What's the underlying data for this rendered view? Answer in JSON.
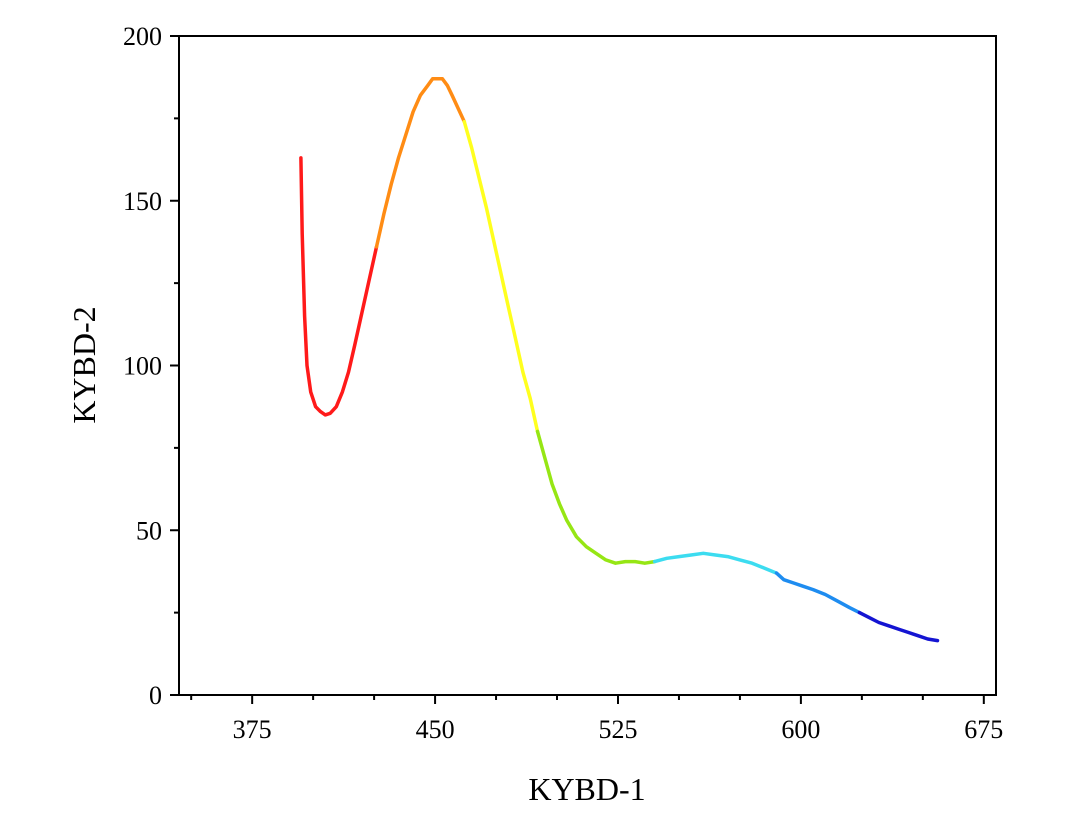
{
  "chart_data": {
    "type": "line",
    "xlabel": "KYBD-1",
    "ylabel": "KYBD-2",
    "xlim": [
      345,
      680
    ],
    "ylim": [
      0,
      200
    ],
    "x_ticks": [
      375,
      450,
      525,
      600,
      675
    ],
    "y_ticks": [
      0,
      50,
      100,
      150,
      200
    ],
    "x_minor_step": 25,
    "y_minor_step": 25,
    "grid": false,
    "legend": "none",
    "series": [
      {
        "color": "#ff1a1a",
        "points": [
          [
            395,
            163
          ],
          [
            395.5,
            140
          ],
          [
            396.5,
            115
          ],
          [
            397.5,
            100
          ],
          [
            399,
            92
          ],
          [
            401,
            87.5
          ],
          [
            403,
            86
          ],
          [
            405,
            85
          ],
          [
            407,
            85.5
          ],
          [
            409.5,
            87.5
          ],
          [
            412,
            92
          ],
          [
            414.5,
            98
          ],
          [
            417,
            106
          ],
          [
            420,
            116
          ],
          [
            423,
            126
          ],
          [
            426,
            136
          ]
        ]
      },
      {
        "color": "#ff8c14",
        "points": [
          [
            426,
            136
          ],
          [
            429,
            146
          ],
          [
            432,
            155
          ],
          [
            435,
            163
          ],
          [
            438,
            170
          ],
          [
            441,
            177
          ],
          [
            444,
            182
          ],
          [
            447,
            185
          ],
          [
            449,
            187
          ],
          [
            451,
            187
          ],
          [
            453,
            187
          ],
          [
            455,
            185
          ],
          [
            457,
            182
          ],
          [
            459.5,
            178
          ],
          [
            462,
            174
          ]
        ]
      },
      {
        "color": "#ffff1e",
        "points": [
          [
            462,
            174
          ],
          [
            465,
            166
          ],
          [
            468,
            157
          ],
          [
            471,
            148
          ],
          [
            474,
            138
          ],
          [
            477,
            128
          ],
          [
            480,
            118
          ],
          [
            483,
            108
          ],
          [
            486,
            98
          ],
          [
            489,
            90
          ],
          [
            492,
            80
          ]
        ]
      },
      {
        "color": "#96e614",
        "points": [
          [
            492,
            80
          ],
          [
            495,
            72
          ],
          [
            498,
            64
          ],
          [
            501,
            58
          ],
          [
            504,
            53
          ],
          [
            508,
            48
          ],
          [
            512,
            45
          ],
          [
            516,
            43
          ],
          [
            520,
            41
          ],
          [
            524,
            40
          ],
          [
            528,
            40.5
          ],
          [
            532,
            40.5
          ],
          [
            536,
            40
          ],
          [
            540,
            40.5
          ]
        ]
      },
      {
        "color": "#3cdcf0",
        "points": [
          [
            540,
            40.5
          ],
          [
            545,
            41.5
          ],
          [
            550,
            42
          ],
          [
            555,
            42.5
          ],
          [
            560,
            43
          ],
          [
            565,
            42.5
          ],
          [
            570,
            42
          ],
          [
            575,
            41
          ],
          [
            580,
            40
          ],
          [
            585,
            38.5
          ],
          [
            590,
            37
          ]
        ]
      },
      {
        "color": "#1e8cf0",
        "points": [
          [
            590,
            37
          ],
          [
            593,
            35
          ],
          [
            597,
            34
          ],
          [
            601,
            33
          ],
          [
            605,
            32
          ],
          [
            610,
            30.5
          ],
          [
            615,
            28.5
          ],
          [
            620,
            26.5
          ],
          [
            624,
            25
          ]
        ]
      },
      {
        "color": "#1414d2",
        "points": [
          [
            624,
            25
          ],
          [
            628,
            23.5
          ],
          [
            632,
            22
          ],
          [
            636,
            21
          ],
          [
            640,
            20
          ],
          [
            644,
            19
          ],
          [
            648,
            18
          ],
          [
            652,
            17
          ],
          [
            656,
            16.5
          ]
        ]
      }
    ]
  }
}
